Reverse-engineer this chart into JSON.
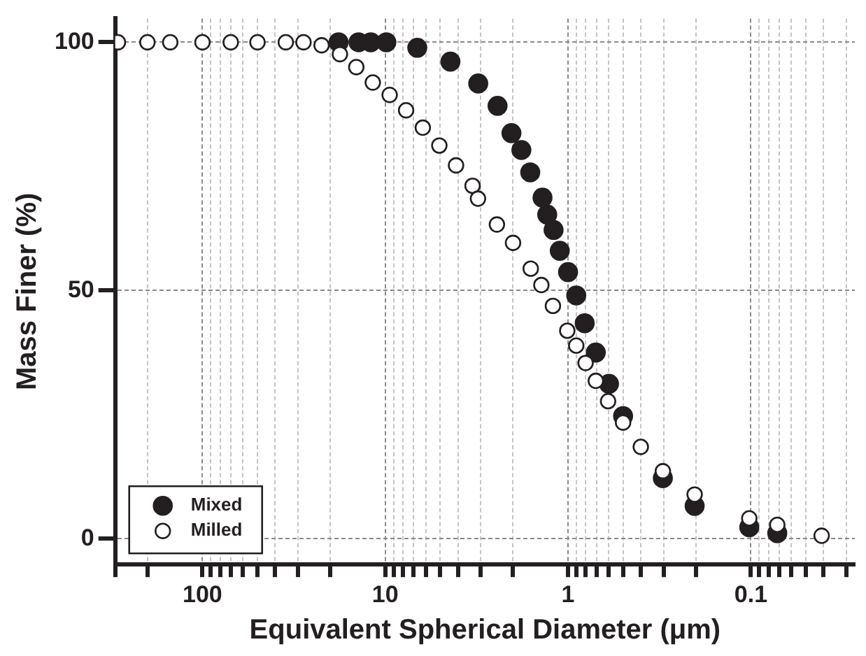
{
  "chart_data": {
    "type": "scatter",
    "xlabel": "Equivalent Spherical Diameter (μm)",
    "ylabel": "Mass Finer (%)",
    "log": "x",
    "xlim": [
      300,
      0.027
    ],
    "ylim": [
      -5.2,
      104.8
    ],
    "xticks": [
      {
        "value": 300,
        "label": null
      },
      {
        "value": 200,
        "label": null
      },
      100,
      {
        "value": 90,
        "label": null
      },
      {
        "value": 80,
        "label": null
      },
      {
        "value": 70,
        "label": null
      },
      {
        "value": 60,
        "label": null
      },
      {
        "value": 50,
        "label": null
      },
      {
        "value": 40,
        "label": null
      },
      {
        "value": 30,
        "label": null
      },
      {
        "value": 20,
        "label": null
      },
      10,
      {
        "value": 9,
        "label": null
      },
      {
        "value": 8,
        "label": null
      },
      {
        "value": 7,
        "label": null
      },
      {
        "value": 6,
        "label": null
      },
      {
        "value": 5,
        "label": null
      },
      {
        "value": 4,
        "label": null
      },
      {
        "value": 3,
        "label": null
      },
      {
        "value": 2,
        "label": null
      },
      1,
      {
        "value": 0.9,
        "label": null
      },
      {
        "value": 0.8,
        "label": null
      },
      {
        "value": 0.7,
        "label": null
      },
      {
        "value": 0.6,
        "label": null
      },
      {
        "value": 0.5,
        "label": null
      },
      {
        "value": 0.4,
        "label": null
      },
      {
        "value": 0.3,
        "label": null
      },
      {
        "value": 0.2,
        "label": null
      },
      0.1,
      {
        "value": 0.09,
        "label": null
      },
      {
        "value": 0.08,
        "label": null
      },
      {
        "value": 0.07,
        "label": null
      },
      {
        "value": 0.06,
        "label": null
      },
      {
        "value": 0.05,
        "label": null
      },
      {
        "value": 0.04,
        "label": null
      },
      {
        "value": 0.03,
        "label": null
      }
    ],
    "yticks": [
      0,
      50,
      100
    ],
    "grid": true,
    "legend": "bottom left",
    "marker": "circle",
    "series": [
      {
        "name": "Mixed",
        "color": "#231f20",
        "x": [
          18,
          14,
          12,
          9.86,
          6.68,
          4.4,
          3.1,
          2.43,
          2.04,
          1.8,
          1.61,
          1.38,
          1.3,
          1.2,
          1.11,
          1.0,
          0.902,
          0.811,
          0.705,
          0.597,
          0.5,
          0.303,
          0.203,
          0.102,
          0.0717
        ],
        "values": [
          100,
          100,
          100,
          100,
          98.9,
          96.1,
          91.7,
          87.2,
          81.7,
          78.3,
          73.8,
          68.7,
          65.3,
          62.2,
          58,
          53.7,
          49,
          43.4,
          37.5,
          31.2,
          24.7,
          12.2,
          6.6,
          2.3,
          1.1
        ]
      },
      {
        "name": "Milled",
        "color": "#ffffff",
        "x": [
          290,
          200,
          150,
          100,
          70,
          50,
          35,
          28,
          22.3,
          17.7,
          14.4,
          11.7,
          9.46,
          7.69,
          6.23,
          5.06,
          4.1,
          3.33,
          3.11,
          2.45,
          2.0,
          1.6,
          1.4,
          1.21,
          1.01,
          0.902,
          0.802,
          0.705,
          0.604,
          0.5,
          0.4,
          0.303,
          0.203,
          0.102,
          0.0717,
          0.041
        ],
        "values": [
          100,
          100,
          100,
          100,
          100,
          100,
          100,
          100,
          99.4,
          97.6,
          95,
          91.9,
          89.4,
          86.3,
          82.8,
          79.2,
          75.2,
          71.1,
          68.5,
          63.3,
          59.6,
          54.4,
          51.1,
          46.9,
          41.9,
          38.9,
          35.4,
          31.8,
          27.7,
          23.4,
          18.5,
          13.6,
          8.9,
          4.1,
          2.8,
          0.6
        ]
      }
    ]
  }
}
